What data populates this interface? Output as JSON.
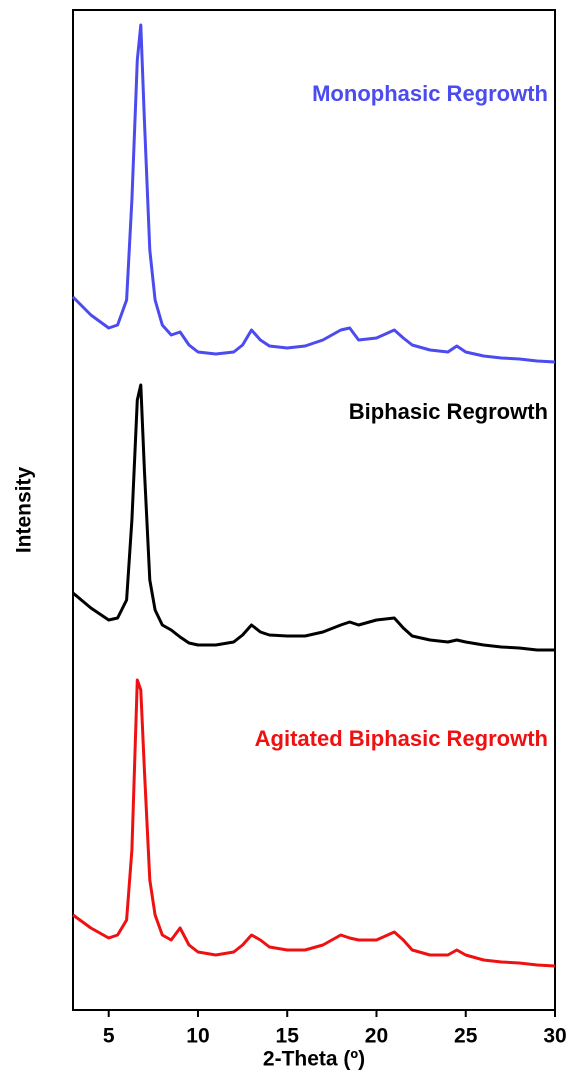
{
  "chart_data": {
    "type": "line",
    "xlabel": "2-Theta (º)",
    "ylabel": "Intensity",
    "x": [
      3,
      4,
      5,
      5.5,
      6,
      6.3,
      6.6,
      6.8,
      7,
      7.3,
      7.6,
      8,
      8.5,
      9,
      9.5,
      10,
      11,
      12,
      12.5,
      13,
      13.5,
      14,
      15,
      16,
      17,
      18,
      18.5,
      19,
      20,
      21,
      21.5,
      22,
      23,
      24,
      24.5,
      25,
      26,
      27,
      28,
      29,
      30
    ],
    "xlim": [
      3,
      30
    ],
    "xticks": [
      5,
      10,
      15,
      20,
      25,
      30
    ],
    "ylim": [
      0,
      100
    ],
    "series": [
      {
        "name": "Monophasic Regrowth",
        "color": "#4b4bef",
        "values": [
          71.3,
          69.5,
          68.2,
          68.5,
          71,
          81,
          95,
          98.5,
          89,
          76,
          71,
          68.5,
          67.5,
          67.8,
          66.5,
          65.8,
          65.6,
          65.8,
          66.5,
          68,
          67,
          66.4,
          66.2,
          66.4,
          67,
          68,
          68.2,
          67,
          67.2,
          68,
          67.2,
          66.5,
          66,
          65.8,
          66.4,
          65.8,
          65.4,
          65.2,
          65.1,
          64.9,
          64.8
        ]
      },
      {
        "name": "Biphasic Regrowth",
        "color": "#000000",
        "values": [
          41.7,
          40.2,
          39,
          39.2,
          41,
          49,
          61,
          62.5,
          54,
          43,
          40,
          38.5,
          38,
          37.3,
          36.7,
          36.5,
          36.5,
          36.8,
          37.5,
          38.5,
          37.8,
          37.5,
          37.4,
          37.4,
          37.8,
          38.5,
          38.8,
          38.5,
          39,
          39.2,
          38.2,
          37.4,
          37,
          36.8,
          37,
          36.8,
          36.5,
          36.3,
          36.2,
          36,
          36
        ]
      },
      {
        "name": "Agitated Biphasic Regrowth",
        "color": "#ef1111",
        "values": [
          9.5,
          8.2,
          7.2,
          7.5,
          9,
          16,
          33,
          32,
          24,
          13,
          9.5,
          7.5,
          7,
          8.2,
          6.5,
          5.8,
          5.5,
          5.8,
          6.5,
          7.5,
          7,
          6.3,
          6,
          6,
          6.5,
          7.5,
          7.2,
          7,
          7,
          7.8,
          7,
          6,
          5.5,
          5.5,
          6,
          5.5,
          5,
          4.8,
          4.7,
          4.5,
          4.4
        ]
      }
    ]
  }
}
